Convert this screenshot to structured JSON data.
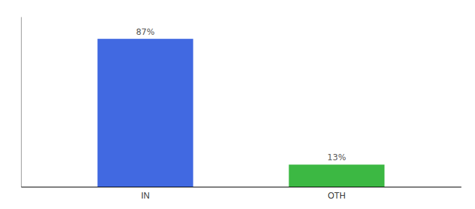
{
  "chart_data": {
    "type": "bar",
    "categories": [
      "IN",
      "OTH"
    ],
    "values": [
      87,
      13
    ],
    "value_labels": [
      "87%",
      "13%"
    ],
    "colors": [
      "#4169e1",
      "#3cb843"
    ],
    "ylim": [
      0,
      100
    ],
    "data_labels": true,
    "tick_labels": "x"
  }
}
